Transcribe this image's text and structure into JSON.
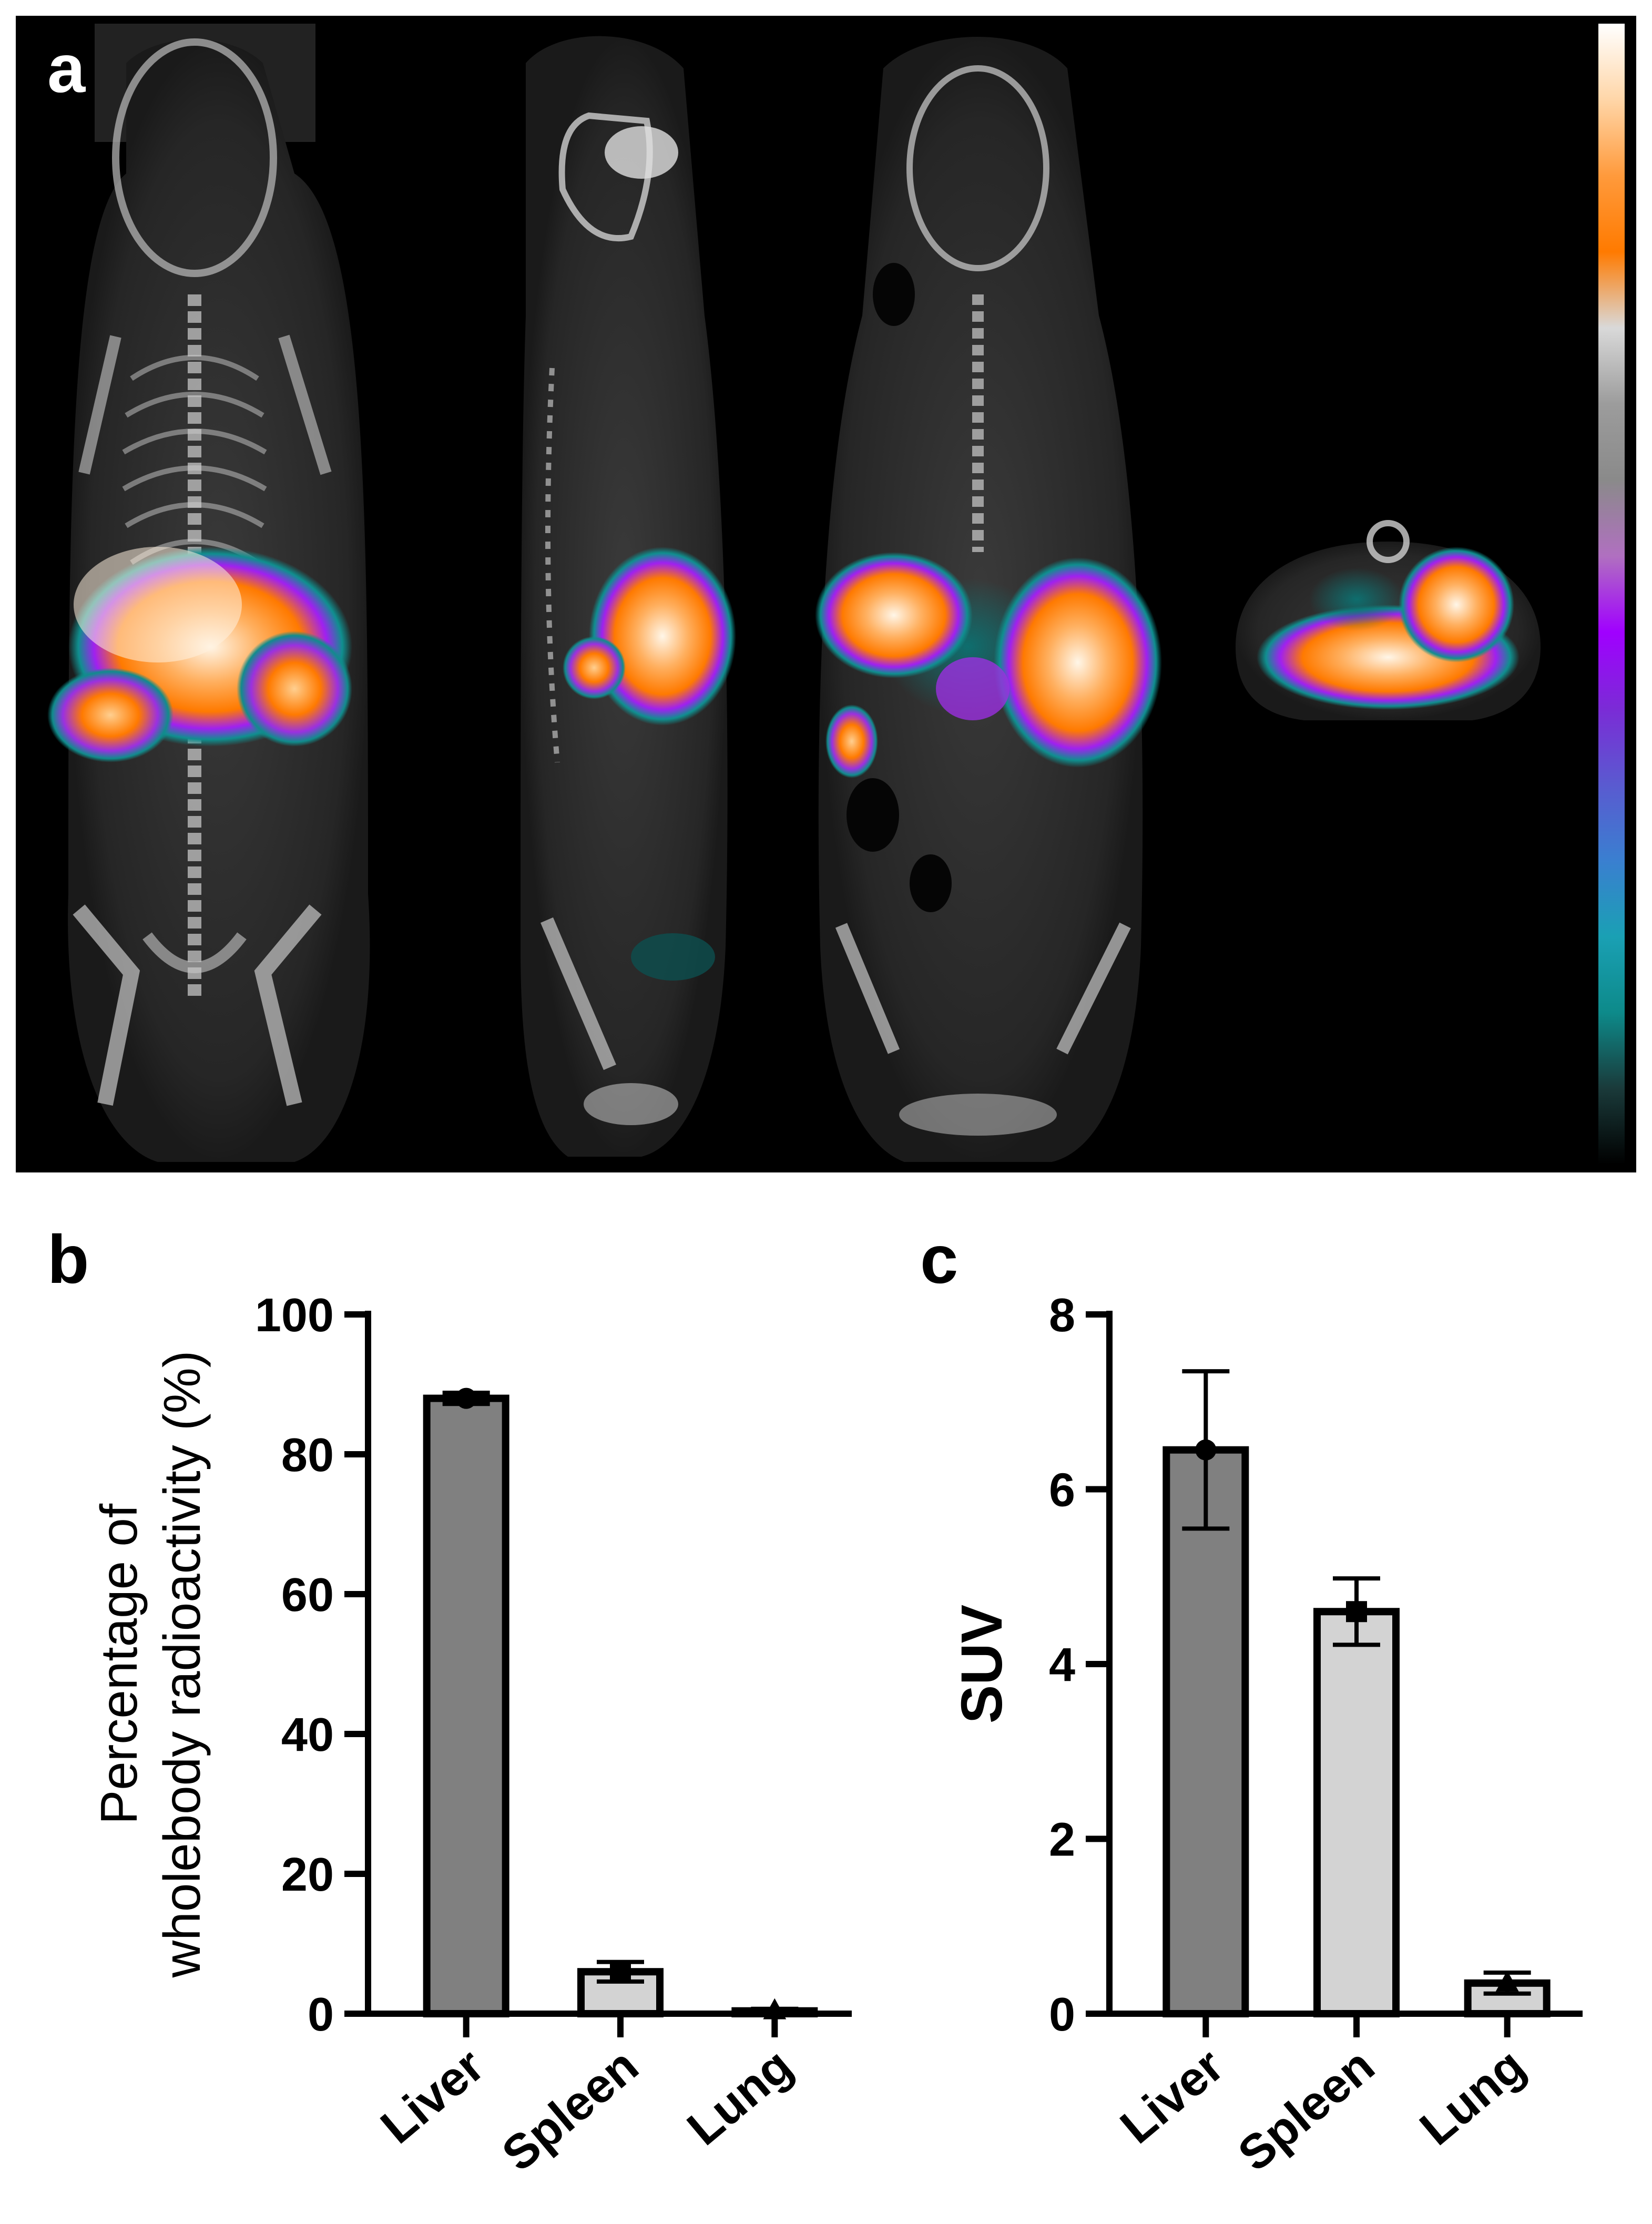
{
  "panels": {
    "a": {
      "letter": "a",
      "colorbar_stops": [
        "#ffffff",
        "#ffd6a8",
        "#ff9a3c",
        "#ff7a00",
        "#d9d9d9",
        "#9c9c9c",
        "#8a8a8a",
        "#b070c0",
        "#a000ff",
        "#7b2bd6",
        "#5a5ad0",
        "#3a7fd0",
        "#1aa0b4",
        "#0d8a8a",
        "#1a3a3a",
        "#000000"
      ],
      "hotspot_colors": {
        "low": "#0f8f8f",
        "mid": "#8a2be2",
        "high": "#ff7a00",
        "peak": "#fff4e0"
      }
    },
    "b": {
      "letter": "b"
    },
    "c": {
      "letter": "c"
    }
  },
  "chart_data": [
    {
      "panel": "b",
      "type": "bar",
      "categories": [
        "Liver",
        "Spleen",
        "Lung"
      ],
      "values": [
        88.0,
        6.0,
        0.4
      ],
      "errors": [
        0.8,
        1.4,
        0.3
      ],
      "markers": [
        "circle",
        "square",
        "triangle"
      ],
      "bar_colors": [
        "#808080",
        "#d3d3d3",
        "#d3d3d3"
      ],
      "ylabel_lines": [
        "Percentage of",
        "wholebody radioactivity (%)"
      ],
      "ylim": [
        0,
        100
      ],
      "yticks": [
        0,
        20,
        40,
        60,
        80,
        100
      ]
    },
    {
      "panel": "c",
      "type": "bar",
      "categories": [
        "Liver",
        "Spleen",
        "Lung"
      ],
      "values": [
        6.45,
        4.6,
        0.35
      ],
      "errors": [
        0.9,
        0.38,
        0.12
      ],
      "markers": [
        "circle",
        "square",
        "triangle"
      ],
      "bar_colors": [
        "#808080",
        "#d3d3d3",
        "#d3d3d3"
      ],
      "ylabel_lines": [
        "SUV"
      ],
      "ylim": [
        0,
        8
      ],
      "yticks": [
        0,
        2,
        4,
        6,
        8
      ]
    }
  ]
}
